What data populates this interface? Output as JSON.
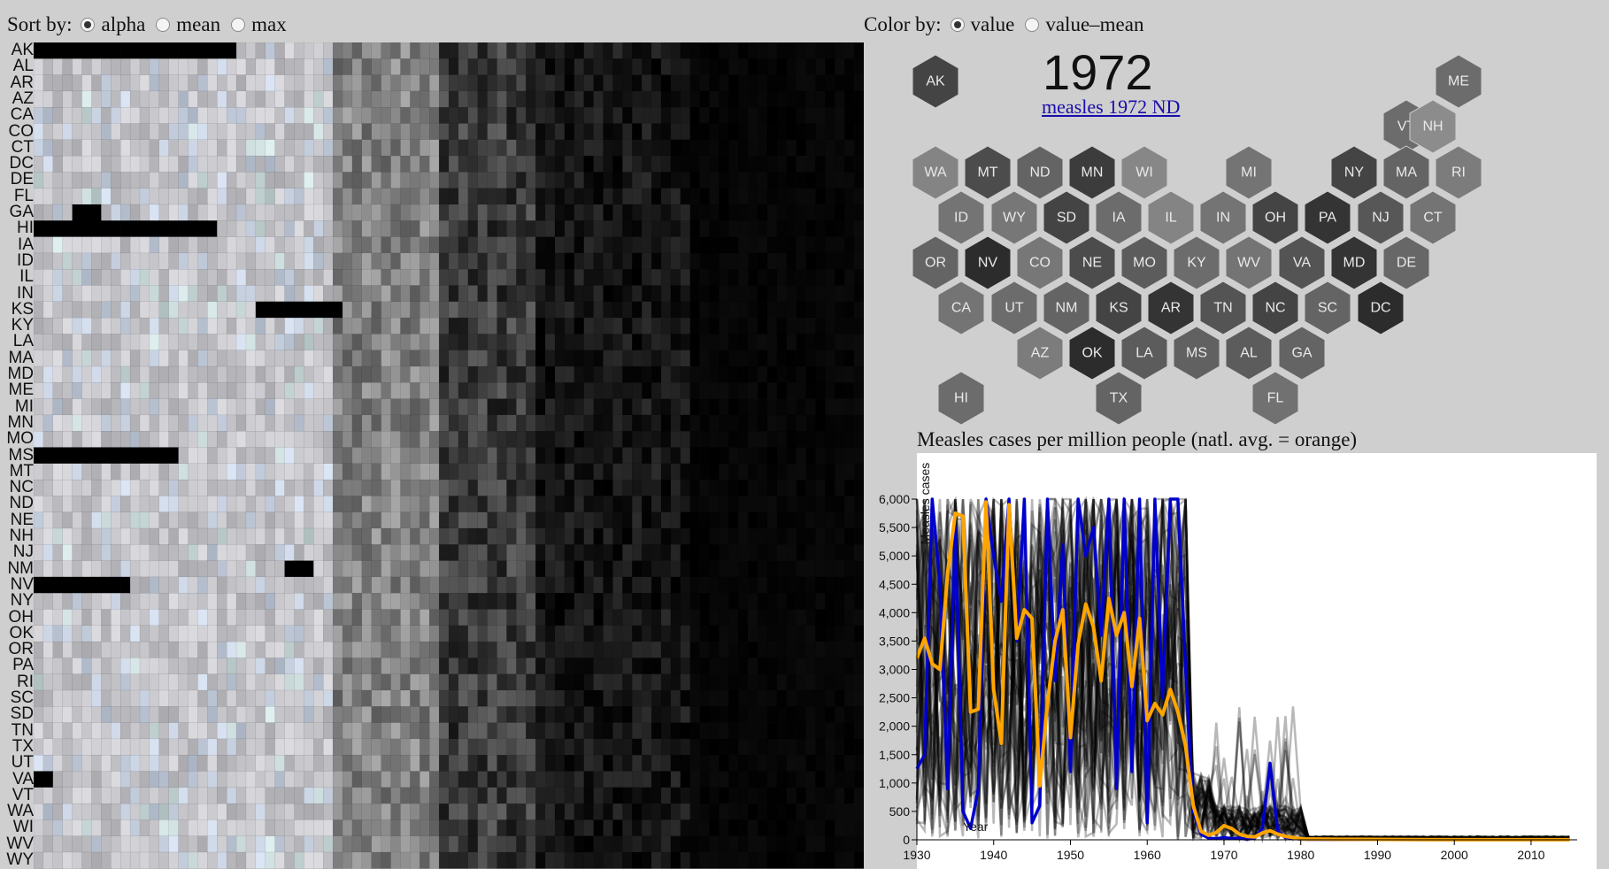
{
  "controls": {
    "sort_label": "Sort by:",
    "sort_options": [
      "alpha",
      "mean",
      "max"
    ],
    "sort_selected": "alpha",
    "color_label": "Color by:",
    "color_options": [
      "value",
      "value–mean"
    ],
    "color_selected": "value"
  },
  "heatmap": {
    "states": [
      "AK",
      "AL",
      "AR",
      "AZ",
      "CA",
      "CO",
      "CT",
      "DC",
      "DE",
      "FL",
      "GA",
      "HI",
      "IA",
      "ID",
      "IL",
      "IN",
      "KS",
      "KY",
      "LA",
      "MA",
      "MD",
      "ME",
      "MI",
      "MN",
      "MO",
      "MS",
      "MT",
      "NC",
      "ND",
      "NE",
      "NH",
      "NJ",
      "NM",
      "NV",
      "NY",
      "OH",
      "OK",
      "OR",
      "PA",
      "RI",
      "SC",
      "SD",
      "TN",
      "TX",
      "UT",
      "VA",
      "VT",
      "WA",
      "WI",
      "WV",
      "WY"
    ],
    "colors": {
      "missing": "#000000",
      "high": "#d8d8e0",
      "low": "#000000"
    }
  },
  "hexmap": {
    "year": "1972",
    "link_text": "measles 1972 ND",
    "states": [
      {
        "s": "AK",
        "v": 0.3
      },
      {
        "s": "ME",
        "v": 0.55
      },
      {
        "s": "VT",
        "v": 0.55
      },
      {
        "s": "NH",
        "v": 0.75
      },
      {
        "s": "WA",
        "v": 0.7
      },
      {
        "s": "MT",
        "v": 0.35
      },
      {
        "s": "ND",
        "v": 0.5
      },
      {
        "s": "MN",
        "v": 0.25
      },
      {
        "s": "WI",
        "v": 0.72
      },
      {
        "s": "MI",
        "v": 0.6
      },
      {
        "s": "NY",
        "v": 0.3
      },
      {
        "s": "MA",
        "v": 0.5
      },
      {
        "s": "RI",
        "v": 0.65
      },
      {
        "s": "ID",
        "v": 0.6
      },
      {
        "s": "WY",
        "v": 0.62
      },
      {
        "s": "SD",
        "v": 0.3
      },
      {
        "s": "IA",
        "v": 0.55
      },
      {
        "s": "IL",
        "v": 0.7
      },
      {
        "s": "IN",
        "v": 0.6
      },
      {
        "s": "OH",
        "v": 0.3
      },
      {
        "s": "PA",
        "v": 0.2
      },
      {
        "s": "NJ",
        "v": 0.42
      },
      {
        "s": "CT",
        "v": 0.6
      },
      {
        "s": "OR",
        "v": 0.5
      },
      {
        "s": "NV",
        "v": 0.15
      },
      {
        "s": "CO",
        "v": 0.62
      },
      {
        "s": "NE",
        "v": 0.35
      },
      {
        "s": "MO",
        "v": 0.45
      },
      {
        "s": "KY",
        "v": 0.55
      },
      {
        "s": "WV",
        "v": 0.6
      },
      {
        "s": "VA",
        "v": 0.4
      },
      {
        "s": "MD",
        "v": 0.2
      },
      {
        "s": "DE",
        "v": 0.52
      },
      {
        "s": "CA",
        "v": 0.6
      },
      {
        "s": "UT",
        "v": 0.55
      },
      {
        "s": "NM",
        "v": 0.5
      },
      {
        "s": "KS",
        "v": 0.3
      },
      {
        "s": "AR",
        "v": 0.2
      },
      {
        "s": "TN",
        "v": 0.4
      },
      {
        "s": "NC",
        "v": 0.3
      },
      {
        "s": "SC",
        "v": 0.5
      },
      {
        "s": "DC",
        "v": 0.15
      },
      {
        "s": "AZ",
        "v": 0.65
      },
      {
        "s": "OK",
        "v": 0.15
      },
      {
        "s": "LA",
        "v": 0.45
      },
      {
        "s": "MS",
        "v": 0.48
      },
      {
        "s": "AL",
        "v": 0.45
      },
      {
        "s": "GA",
        "v": 0.5
      },
      {
        "s": "HI",
        "v": 0.55
      },
      {
        "s": "TX",
        "v": 0.5
      },
      {
        "s": "FL",
        "v": 0.58
      }
    ]
  },
  "chart": {
    "title": "Measles cases per million people (natl. avg. = orange)",
    "xlabel": "Year",
    "ylabel": "Measles cases",
    "highlight_color": "#0000cc",
    "avg_color": "#ffa500",
    "line_color": "#000000"
  },
  "chart_data": {
    "type": "line",
    "title": "Measles cases per million people (natl. avg. = orange)",
    "xlabel": "Year",
    "ylabel": "Measles cases",
    "xlim": [
      1930,
      2016
    ],
    "ylim": [
      0,
      6000
    ],
    "x_ticks": [
      1930,
      1940,
      1950,
      1960,
      1970,
      1980,
      1990,
      2000,
      2010
    ],
    "y_ticks": [
      "0",
      "500",
      "1,000",
      "1,500",
      "2,000",
      "2,500",
      "3,000",
      "3,500",
      "4,000",
      "4,500",
      "5,000",
      "5,500",
      "6,000"
    ],
    "series": [
      {
        "x": [
          1930,
          1931,
          1932,
          1933,
          1934,
          1935,
          1936,
          1937,
          1938,
          1939,
          1940,
          1941,
          1942,
          1943,
          1944,
          1945,
          1946,
          1947,
          1948,
          1949,
          1950,
          1951,
          1952,
          1953,
          1954,
          1955,
          1956,
          1957,
          1958,
          1959,
          1960,
          1961,
          1962,
          1963,
          1964,
          1965,
          1966,
          1967,
          1968,
          1969,
          1970,
          1971,
          1972,
          1973,
          1974,
          1975,
          1976,
          1977,
          1978,
          1979,
          1980,
          1985,
          1990,
          1995,
          2000,
          2005,
          2010,
          2015
        ],
        "values": [
          3200,
          3550,
          3100,
          3000,
          4700,
          5750,
          5700,
          2250,
          2300,
          5950,
          2650,
          1700,
          5900,
          3550,
          4050,
          3900,
          950,
          2400,
          3500,
          4050,
          1800,
          3450,
          4150,
          3750,
          2800,
          4250,
          3600,
          4000,
          2700,
          3900,
          2100,
          2400,
          2200,
          2650,
          2250,
          1650,
          600,
          150,
          80,
          130,
          250,
          200,
          100,
          60,
          50,
          120,
          160,
          100,
          60,
          40,
          15,
          10,
          8,
          5,
          2,
          2,
          2,
          2
        ]
      },
      {
        "x": [
          1930,
          1931,
          1932,
          1933,
          1934,
          1935,
          1936,
          1937,
          1938,
          1939,
          1940,
          1941,
          1942,
          1943,
          1944,
          1945,
          1946,
          1947,
          1948,
          1949,
          1950,
          1951,
          1952,
          1953,
          1954,
          1955,
          1956,
          1957,
          1958,
          1959,
          1960,
          1961,
          1962,
          1963,
          1964,
          1965,
          1966,
          1967,
          1968,
          1969,
          1970,
          1971,
          1972,
          1973,
          1974,
          1975,
          1976,
          1977,
          1978,
          1979,
          1980,
          1985,
          1990,
          2000,
          2010,
          2015
        ],
        "values": [
          1250,
          1500,
          6000,
          4500,
          900,
          5500,
          500,
          200,
          900,
          6000,
          5000,
          4200,
          6000,
          3500,
          6000,
          300,
          600,
          6000,
          2800,
          5200,
          1200,
          6000,
          5000,
          5500,
          3600,
          6000,
          900,
          6000,
          1200,
          6000,
          300,
          6000,
          2500,
          6000,
          6000,
          3000,
          500,
          100,
          30,
          20,
          40,
          20,
          30,
          10,
          30,
          200,
          1350,
          150,
          40,
          30,
          10,
          5,
          5,
          2,
          2,
          2
        ]
      }
    ]
  }
}
